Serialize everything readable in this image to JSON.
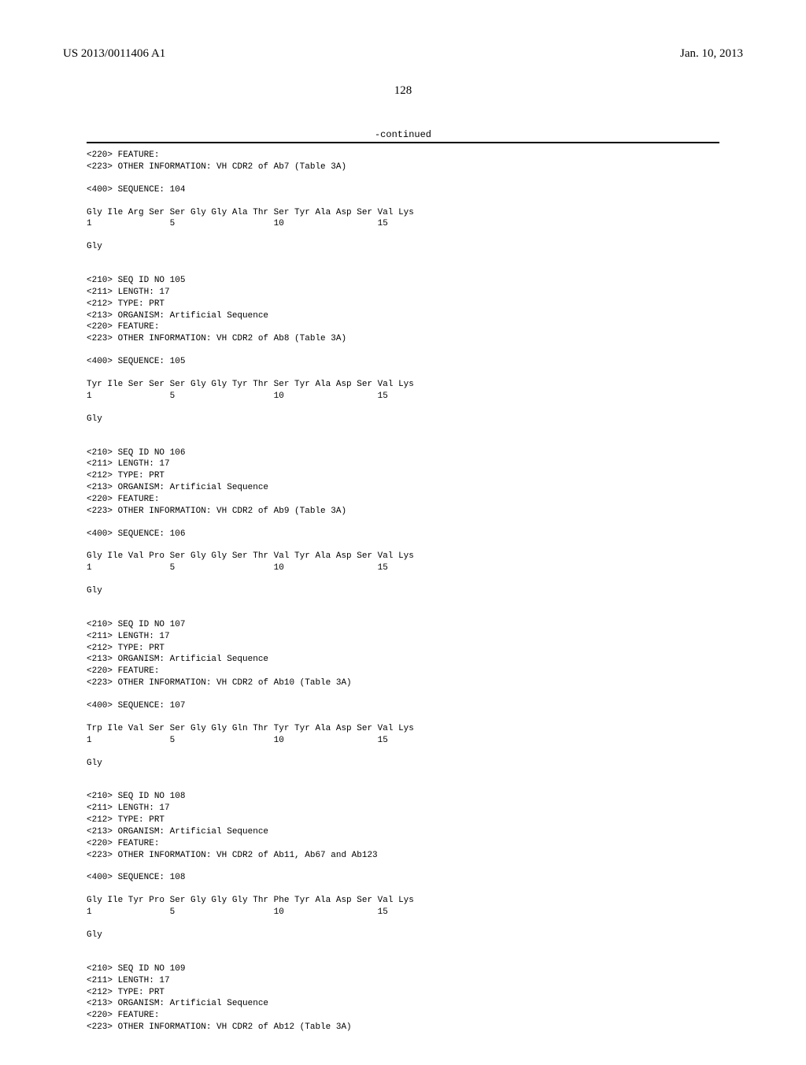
{
  "header": {
    "left": "US 2013/0011406 A1",
    "right": "Jan. 10, 2013"
  },
  "page_number": "128",
  "continued_label": "-continued",
  "first_block": {
    "feature": "<220> FEATURE:",
    "other_info": "<223> OTHER INFORMATION: VH CDR2 of Ab7 (Table 3A)",
    "seq_label": "<400> SEQUENCE: 104",
    "seq_line": "Gly Ile Arg Ser Ser Gly Gly Ala Thr Ser Tyr Ala Asp Ser Val Lys",
    "num_line": "1               5                   10                  15",
    "tail": "Gly"
  },
  "entries": [
    {
      "seq_id": "<210> SEQ ID NO 105",
      "length": "<211> LENGTH: 17",
      "type": "<212> TYPE: PRT",
      "organism": "<213> ORGANISM: Artificial Sequence",
      "feature": "<220> FEATURE:",
      "other_info": "<223> OTHER INFORMATION: VH CDR2 of Ab8 (Table 3A)",
      "seq_label": "<400> SEQUENCE: 105",
      "seq_line": "Tyr Ile Ser Ser Ser Gly Gly Tyr Thr Ser Tyr Ala Asp Ser Val Lys",
      "num_line": "1               5                   10                  15",
      "tail": "Gly"
    },
    {
      "seq_id": "<210> SEQ ID NO 106",
      "length": "<211> LENGTH: 17",
      "type": "<212> TYPE: PRT",
      "organism": "<213> ORGANISM: Artificial Sequence",
      "feature": "<220> FEATURE:",
      "other_info": "<223> OTHER INFORMATION: VH CDR2 of Ab9 (Table 3A)",
      "seq_label": "<400> SEQUENCE: 106",
      "seq_line": "Gly Ile Val Pro Ser Gly Gly Ser Thr Val Tyr Ala Asp Ser Val Lys",
      "num_line": "1               5                   10                  15",
      "tail": "Gly"
    },
    {
      "seq_id": "<210> SEQ ID NO 107",
      "length": "<211> LENGTH: 17",
      "type": "<212> TYPE: PRT",
      "organism": "<213> ORGANISM: Artificial Sequence",
      "feature": "<220> FEATURE:",
      "other_info": "<223> OTHER INFORMATION: VH CDR2 of Ab10 (Table 3A)",
      "seq_label": "<400> SEQUENCE: 107",
      "seq_line": "Trp Ile Val Ser Ser Gly Gly Gln Thr Tyr Tyr Ala Asp Ser Val Lys",
      "num_line": "1               5                   10                  15",
      "tail": "Gly"
    },
    {
      "seq_id": "<210> SEQ ID NO 108",
      "length": "<211> LENGTH: 17",
      "type": "<212> TYPE: PRT",
      "organism": "<213> ORGANISM: Artificial Sequence",
      "feature": "<220> FEATURE:",
      "other_info": "<223> OTHER INFORMATION: VH CDR2 of Ab11, Ab67 and Ab123",
      "seq_label": "<400> SEQUENCE: 108",
      "seq_line": "Gly Ile Tyr Pro Ser Gly Gly Gly Thr Phe Tyr Ala Asp Ser Val Lys",
      "num_line": "1               5                   10                  15",
      "tail": "Gly"
    }
  ],
  "last_block": {
    "seq_id": "<210> SEQ ID NO 109",
    "length": "<211> LENGTH: 17",
    "type": "<212> TYPE: PRT",
    "organism": "<213> ORGANISM: Artificial Sequence",
    "feature": "<220> FEATURE:",
    "other_info": "<223> OTHER INFORMATION: VH CDR2 of Ab12 (Table 3A)"
  }
}
